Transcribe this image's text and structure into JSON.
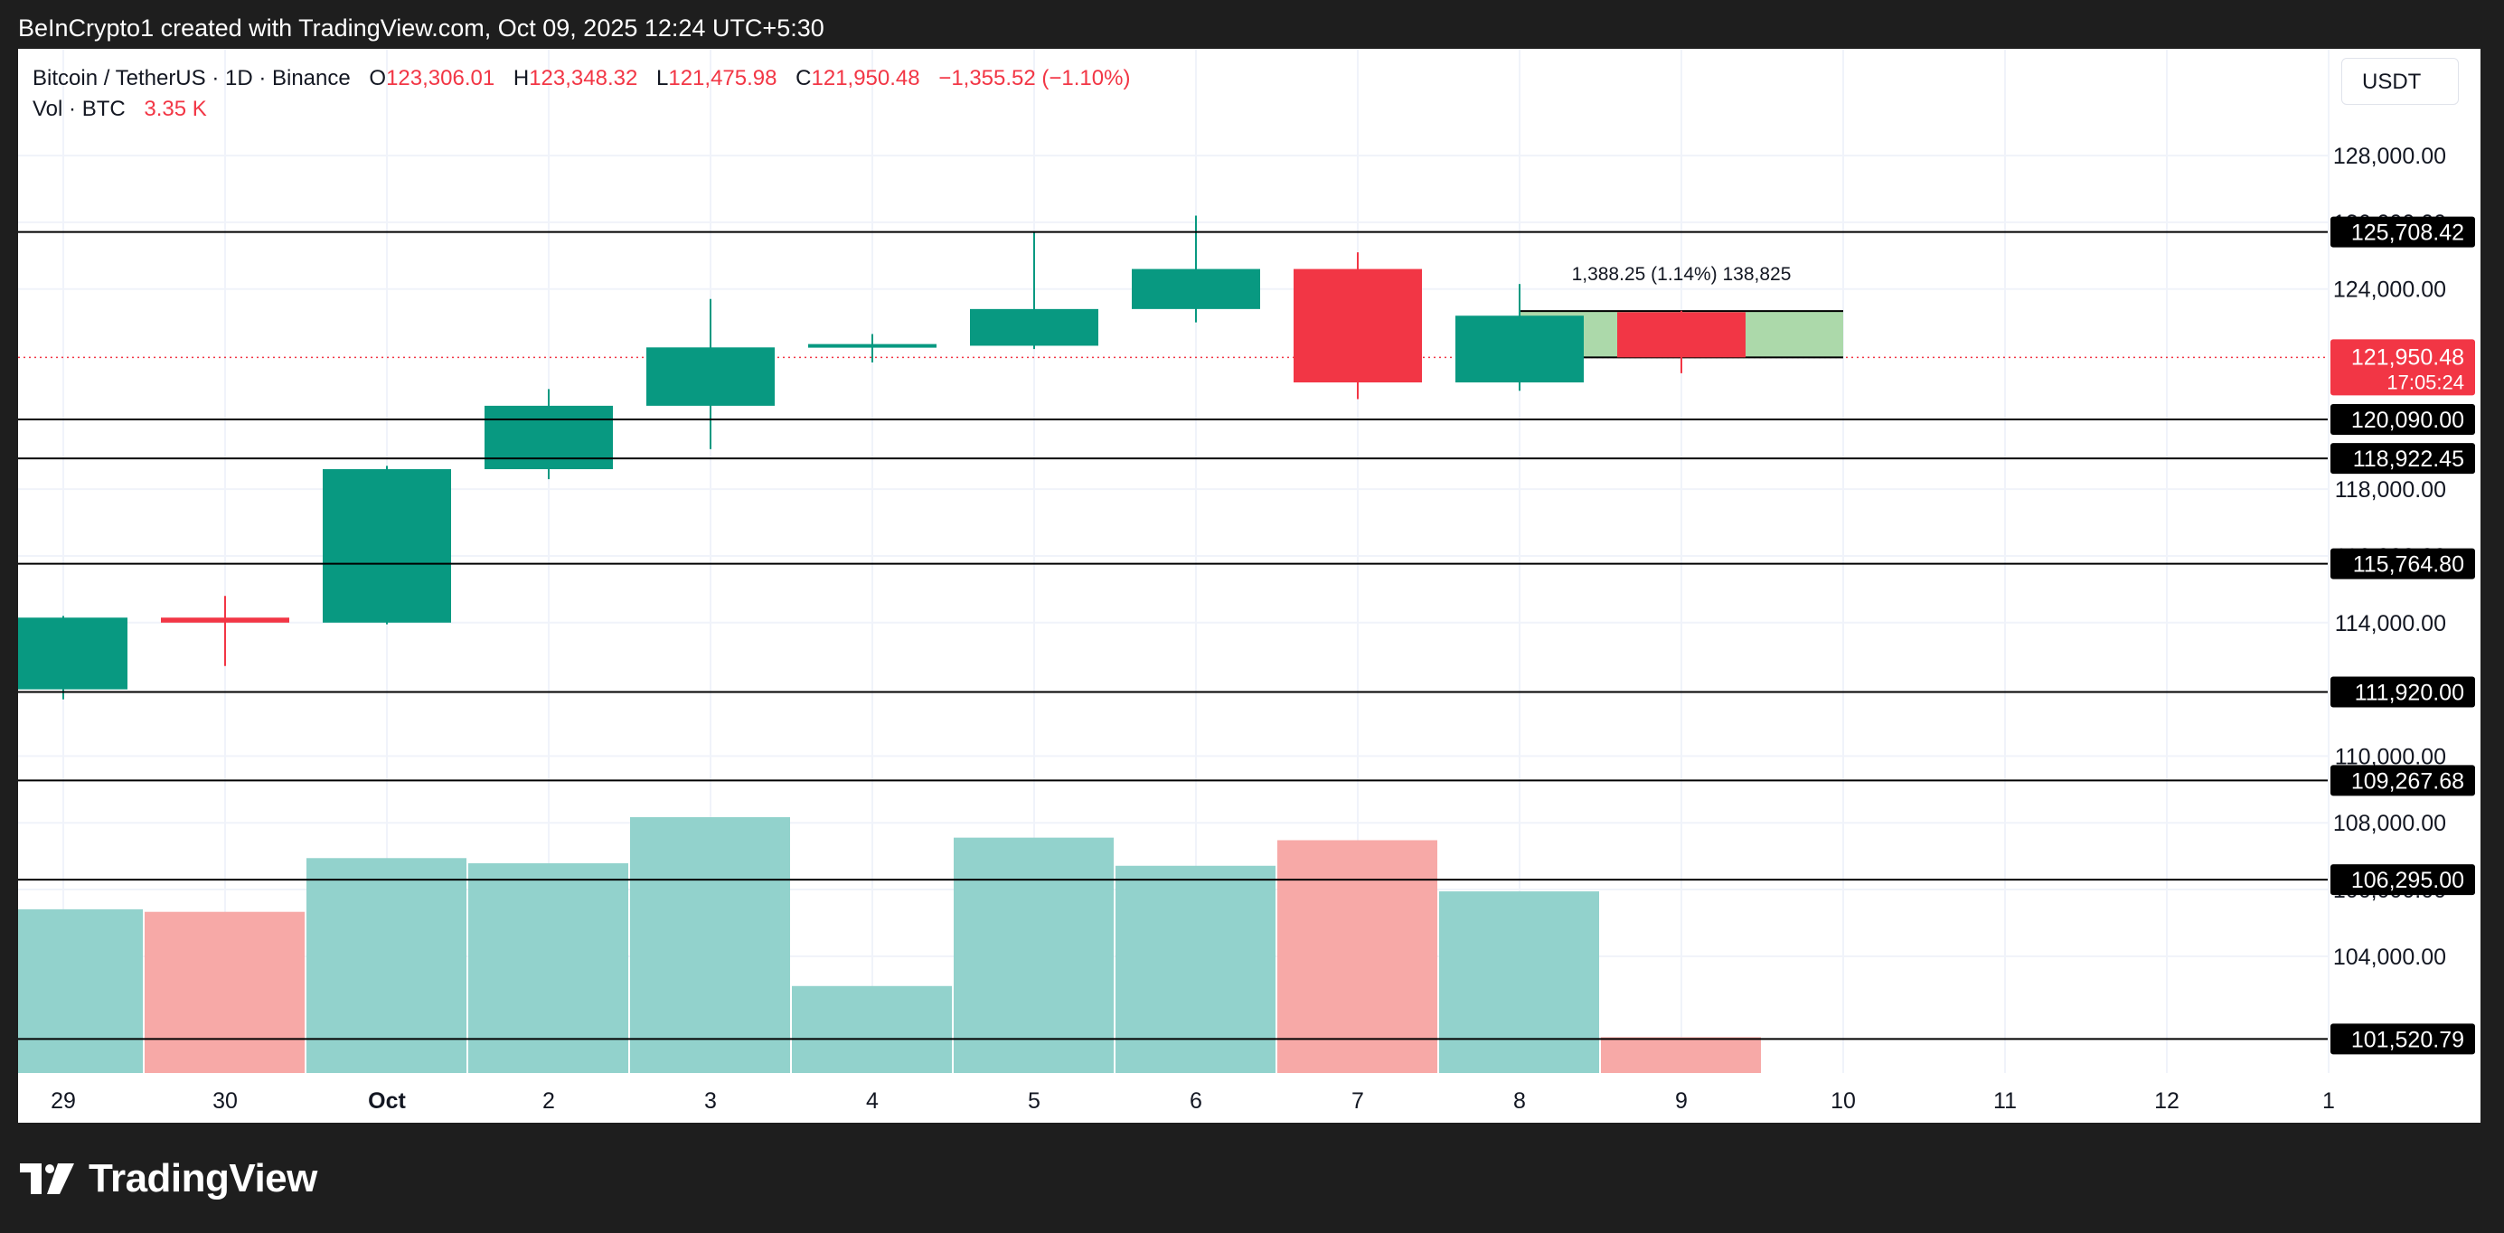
{
  "header": {
    "attribution": "BeInCrypto1 created with TradingView.com, Oct 09, 2025 12:24 UTC+5:30"
  },
  "legend": {
    "symbol": "Bitcoin / TetherUS · 1D · Binance",
    "o_label": "O",
    "o_value": "123,306.01",
    "h_label": "H",
    "h_value": "123,348.32",
    "l_label": "L",
    "l_value": "121,475.98",
    "c_label": "C",
    "c_value": "121,950.48",
    "change": "−1,355.52 (−1.10%)",
    "vol_label": "Vol · BTC",
    "vol_value": "3.35 K"
  },
  "currency_button": "USDT",
  "footer": {
    "logo_text": "TradingView"
  },
  "colors": {
    "up": "#089981",
    "down": "#f23645",
    "vol_up": "#92d2cc",
    "vol_down": "#f7a9a7",
    "grid": "#f0f3fa",
    "axis_text": "#131722",
    "level_line": "#000000"
  },
  "chart_data": {
    "type": "candlestick",
    "symbol": "Bitcoin / TetherUS",
    "interval": "1D",
    "exchange": "Binance",
    "ylim": [
      100500,
      131200
    ],
    "x_tick_labels": [
      "29",
      "30",
      "Oct",
      "2",
      "3",
      "4",
      "5",
      "6",
      "7",
      "8",
      "9",
      "10",
      "11",
      "12",
      "1"
    ],
    "y_tick_labels": [
      "128,000.00",
      "126,000.00",
      "124,000.00",
      "118,000.00",
      "116,000.00",
      "114,000.00",
      "110,000.00",
      "108,000.00",
      "106,000.00",
      "104,000.00"
    ],
    "candles": [
      {
        "date": "29",
        "open": 112000,
        "high": 114200,
        "low": 111700,
        "close": 114150
      },
      {
        "date": "30",
        "open": 114150,
        "high": 114800,
        "low": 112700,
        "close": 114000
      },
      {
        "date": "Oct",
        "open": 114000,
        "high": 118700,
        "low": 113950,
        "close": 118600
      },
      {
        "date": "2",
        "open": 118600,
        "high": 121000,
        "low": 118300,
        "close": 120500
      },
      {
        "date": "3",
        "open": 120500,
        "high": 123700,
        "low": 119200,
        "close": 122250
      },
      {
        "date": "4",
        "open": 122250,
        "high": 122650,
        "low": 121800,
        "close": 122350
      },
      {
        "date": "5",
        "open": 122300,
        "high": 125700,
        "low": 122200,
        "close": 123400
      },
      {
        "date": "6",
        "open": 123400,
        "high": 126200,
        "low": 123000,
        "close": 124600
      },
      {
        "date": "7",
        "open": 124600,
        "high": 125100,
        "low": 120700,
        "close": 121200
      },
      {
        "date": "8",
        "open": 121200,
        "high": 124150,
        "low": 120950,
        "close": 123200
      },
      {
        "date": "9",
        "open": 123306.01,
        "high": 123348.32,
        "low": 121475.98,
        "close": 121950.48
      }
    ],
    "volume": {
      "label": "Vol · BTC",
      "bars": [
        {
          "date": "29",
          "direction": "up",
          "level": 0.64
        },
        {
          "date": "30",
          "direction": "down",
          "level": 0.63
        },
        {
          "date": "Oct",
          "direction": "up",
          "level": 0.84
        },
        {
          "date": "2",
          "direction": "up",
          "level": 0.82
        },
        {
          "date": "3",
          "direction": "up",
          "level": 1.0
        },
        {
          "date": "4",
          "direction": "up",
          "level": 0.34
        },
        {
          "date": "5",
          "direction": "up",
          "level": 0.92
        },
        {
          "date": "6",
          "direction": "up",
          "level": 0.81
        },
        {
          "date": "7",
          "direction": "down",
          "level": 0.91
        },
        {
          "date": "8",
          "direction": "up",
          "level": 0.71
        },
        {
          "date": "9",
          "direction": "down",
          "level": 0.14
        }
      ]
    },
    "horizontal_levels": [
      {
        "value": 125708.42,
        "label": "125,708.42"
      },
      {
        "value": 120090.0,
        "label": "120,090.00"
      },
      {
        "value": 118922.45,
        "label": "118,922.45"
      },
      {
        "value": 115764.8,
        "label": "115,764.80"
      },
      {
        "value": 111920.0,
        "label": "111,920.00"
      },
      {
        "value": 109267.68,
        "label": "109,267.68"
      },
      {
        "value": 106295.0,
        "label": "106,295.00"
      },
      {
        "value": 101520.79,
        "label": "101,520.79"
      }
    ],
    "current_price": {
      "value": 121950.48,
      "label": "121,950.48",
      "countdown": "17:05:24"
    },
    "measure_box": {
      "label": "1,388.25 (1.14%) 138,825",
      "top": 123338.73,
      "bottom": 121950.48,
      "from_date": "8",
      "to_date": "10"
    }
  }
}
